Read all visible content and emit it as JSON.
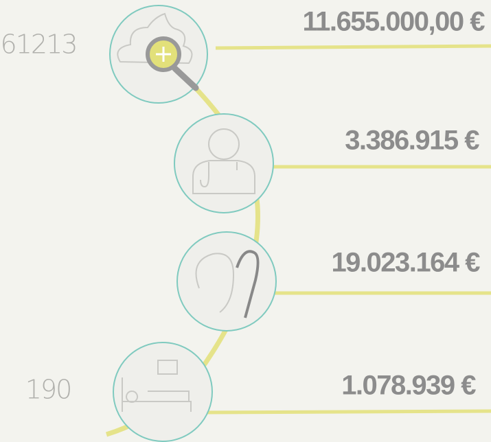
{
  "steps": [
    {
      "count": "61213",
      "amount": "11.655.000,00 €"
    },
    {
      "amount": "3.386.915 €"
    },
    {
      "amount": "19.023.164 €"
    },
    {
      "count": "190",
      "amount": "1.078.939 €"
    }
  ]
}
